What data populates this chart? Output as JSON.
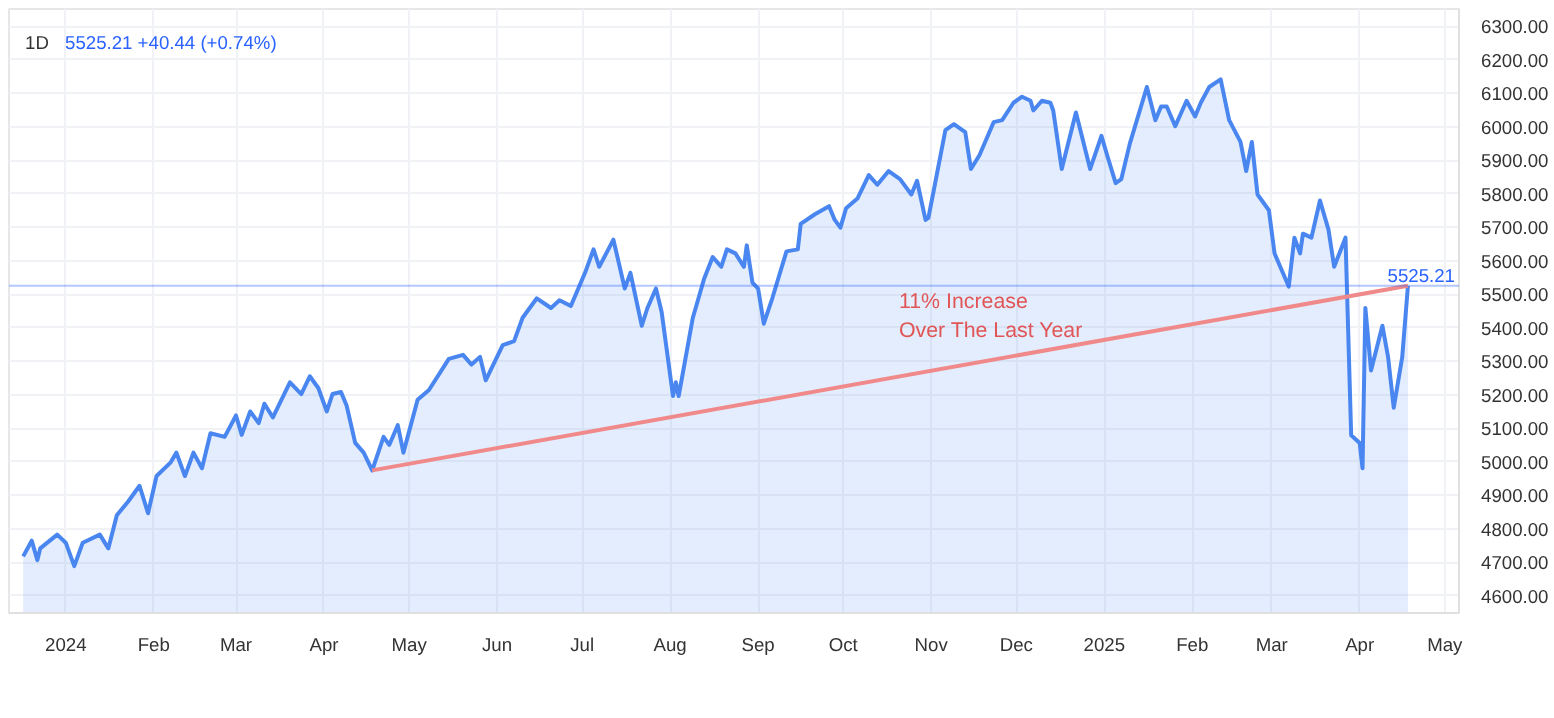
{
  "chart_data": {
    "type": "area",
    "title": "1D",
    "subtitle": "5525.21 +40.44 (+0.74%)",
    "x": [
      "2023-12-17",
      "2023-12-20",
      "2023-12-22",
      "2023-12-23",
      "2023-12-29",
      "2024-01-01",
      "2024-01-04",
      "2024-01-07",
      "2024-01-13",
      "2024-01-16",
      "2024-01-19",
      "2024-01-23",
      "2024-01-27",
      "2024-01-30",
      "2024-02-02",
      "2024-02-07",
      "2024-02-09",
      "2024-02-12",
      "2024-02-15",
      "2024-02-18",
      "2024-02-21",
      "2024-02-26",
      "2024-03-01",
      "2024-03-03",
      "2024-03-06",
      "2024-03-09",
      "2024-03-11",
      "2024-03-14",
      "2024-03-20",
      "2024-03-24",
      "2024-03-27",
      "2024-03-30",
      "2024-04-02",
      "2024-04-04",
      "2024-04-07",
      "2024-04-09",
      "2024-04-12",
      "2024-04-15",
      "2024-04-18",
      "2024-04-22",
      "2024-04-24",
      "2024-04-27",
      "2024-04-29",
      "2024-05-04",
      "2024-05-08",
      "2024-05-15",
      "2024-05-20",
      "2024-05-23",
      "2024-05-26",
      "2024-05-28",
      "2024-06-03",
      "2024-06-07",
      "2024-06-10",
      "2024-06-15",
      "2024-06-20",
      "2024-06-23",
      "2024-06-27",
      "2024-07-02",
      "2024-07-05",
      "2024-07-07",
      "2024-07-12",
      "2024-07-16",
      "2024-07-18",
      "2024-07-22",
      "2024-07-24",
      "2024-07-27",
      "2024-07-29",
      "2024-08-02",
      "2024-08-03",
      "2024-08-04",
      "2024-08-09",
      "2024-08-13",
      "2024-08-16",
      "2024-08-19",
      "2024-08-21",
      "2024-08-24",
      "2024-08-27",
      "2024-08-28",
      "2024-08-30",
      "2024-09-01",
      "2024-09-03",
      "2024-09-06",
      "2024-09-11",
      "2024-09-15",
      "2024-09-16",
      "2024-09-21",
      "2024-09-26",
      "2024-09-28",
      "2024-09-30",
      "2024-10-02",
      "2024-10-06",
      "2024-10-10",
      "2024-10-13",
      "2024-10-17",
      "2024-10-21",
      "2024-10-25",
      "2024-10-27",
      "2024-10-30",
      "2024-10-31",
      "2024-11-02",
      "2024-11-06",
      "2024-11-09",
      "2024-11-13",
      "2024-11-15",
      "2024-11-18",
      "2024-11-23",
      "2024-11-26",
      "2024-11-30",
      "2024-12-03",
      "2024-12-06",
      "2024-12-07",
      "2024-12-10",
      "2024-12-13",
      "2024-12-14",
      "2024-12-17",
      "2024-12-22",
      "2024-12-27",
      "2024-12-31",
      "2025-01-02",
      "2025-01-05",
      "2025-01-07",
      "2025-01-10",
      "2025-01-16",
      "2025-01-19",
      "2025-01-21",
      "2025-01-23",
      "2025-01-26",
      "2025-01-30",
      "2025-02-02",
      "2025-02-04",
      "2025-02-07",
      "2025-02-11",
      "2025-02-14",
      "2025-02-18",
      "2025-02-20",
      "2025-02-22",
      "2025-02-24",
      "2025-02-28",
      "2025-03-02",
      "2025-03-04",
      "2025-03-07",
      "2025-03-09",
      "2025-03-11",
      "2025-03-12",
      "2025-03-15",
      "2025-03-18",
      "2025-03-21",
      "2025-03-23",
      "2025-03-27",
      "2025-03-29",
      "2025-04-01",
      "2025-04-02",
      "2025-04-03",
      "2025-04-05",
      "2025-04-09",
      "2025-04-11",
      "2025-04-13",
      "2025-04-16",
      "2025-04-18"
    ],
    "series": [
      {
        "color": "#4a86f0",
        "values": [
          4717,
          4764,
          4706,
          4741,
          4782,
          4758,
          4688,
          4758,
          4782,
          4741,
          4840,
          4881,
          4928,
          4846,
          4957,
          4998,
          5027,
          4957,
          5027,
          4980,
          5085,
          5074,
          5138,
          5080,
          5150,
          5115,
          5173,
          5132,
          5237,
          5202,
          5255,
          5220,
          5150,
          5202,
          5208,
          5167,
          5056,
          5027,
          4974,
          5074,
          5050,
          5109,
          5027,
          5185,
          5214,
          5307,
          5319,
          5290,
          5313,
          5243,
          5348,
          5360,
          5430,
          5488,
          5459,
          5482,
          5465,
          5564,
          5634,
          5582,
          5663,
          5517,
          5564,
          5406,
          5459,
          5517,
          5447,
          5196,
          5237,
          5196,
          5430,
          5547,
          5611,
          5582,
          5634,
          5622,
          5582,
          5646,
          5535,
          5517,
          5412,
          5488,
          5628,
          5634,
          5710,
          5739,
          5763,
          5722,
          5699,
          5757,
          5786,
          5856,
          5827,
          5868,
          5844,
          5798,
          5839,
          5722,
          5728,
          5815,
          5990,
          6008,
          5984,
          5874,
          5915,
          6014,
          6020,
          6072,
          6090,
          6078,
          6049,
          6078,
          6072,
          6049,
          5874,
          6043,
          5874,
          5973,
          5915,
          5832,
          5844,
          5950,
          6119,
          6020,
          6061,
          6061,
          6002,
          6078,
          6031,
          6072,
          6119,
          6142,
          6020,
          5955,
          5868,
          5955,
          5798,
          5751,
          5622,
          5582,
          5523,
          5669,
          5622,
          5681,
          5669,
          5780,
          5693,
          5582,
          5669,
          5079,
          5056,
          4980,
          5459,
          5272,
          5406,
          5313,
          5161,
          5313,
          5525.21
        ]
      },
      {
        "type": "line",
        "color": "#f08a8a",
        "x": [
          "2024-04-18",
          "2025-04-18"
        ],
        "values": [
          4974,
          5525.21
        ]
      }
    ],
    "annotations": [
      "11% Increase\nOver The Last Year"
    ],
    "ref_lines": [
      {
        "axis": "y",
        "value": 5525.21,
        "label": "5525.21",
        "color": "#2962ff"
      }
    ],
    "xlim": [
      "2023-12-12",
      "2025-05-06"
    ],
    "xticks": [
      {
        "value": "2024-01-01",
        "label": "2024"
      },
      {
        "value": "2024-02-01",
        "label": "Feb"
      },
      {
        "value": "2024-03-01",
        "label": "Mar"
      },
      {
        "value": "2024-04-01",
        "label": "Apr"
      },
      {
        "value": "2024-05-01",
        "label": "May"
      },
      {
        "value": "2024-06-01",
        "label": "Jun"
      },
      {
        "value": "2024-07-01",
        "label": "Jul"
      },
      {
        "value": "2024-08-01",
        "label": "Aug"
      },
      {
        "value": "2024-09-01",
        "label": "Sep"
      },
      {
        "value": "2024-10-01",
        "label": "Oct"
      },
      {
        "value": "2024-11-01",
        "label": "Nov"
      },
      {
        "value": "2024-12-01",
        "label": "Dec"
      },
      {
        "value": "2025-01-01",
        "label": "2025"
      },
      {
        "value": "2025-02-01",
        "label": "Feb"
      },
      {
        "value": "2025-03-01",
        "label": "Mar"
      },
      {
        "value": "2025-04-01",
        "label": "Apr"
      },
      {
        "value": "2025-05-01",
        "label": "May"
      }
    ],
    "ylim": [
      4548,
      6352
    ],
    "yticks": [
      {
        "value": 4600,
        "label": "4600.00"
      },
      {
        "value": 4700,
        "label": "4700.00"
      },
      {
        "value": 4800,
        "label": "4800.00"
      },
      {
        "value": 4900,
        "label": "4900.00"
      },
      {
        "value": 5000,
        "label": "5000.00"
      },
      {
        "value": 5100,
        "label": "5100.00"
      },
      {
        "value": 5200,
        "label": "5200.00"
      },
      {
        "value": 5300,
        "label": "5300.00"
      },
      {
        "value": 5400,
        "label": "5400.00"
      },
      {
        "value": 5500,
        "label": "5500.00"
      },
      {
        "value": 5600,
        "label": "5600.00"
      },
      {
        "value": 5700,
        "label": "5700.00"
      },
      {
        "value": 5800,
        "label": "5800.00"
      },
      {
        "value": 5900,
        "label": "5900.00"
      },
      {
        "value": 6000,
        "label": "6000.00"
      },
      {
        "value": 6100,
        "label": "6100.00"
      },
      {
        "value": 6200,
        "label": "6200.00"
      },
      {
        "value": 6300,
        "label": "6300.00"
      }
    ],
    "grid": true
  }
}
